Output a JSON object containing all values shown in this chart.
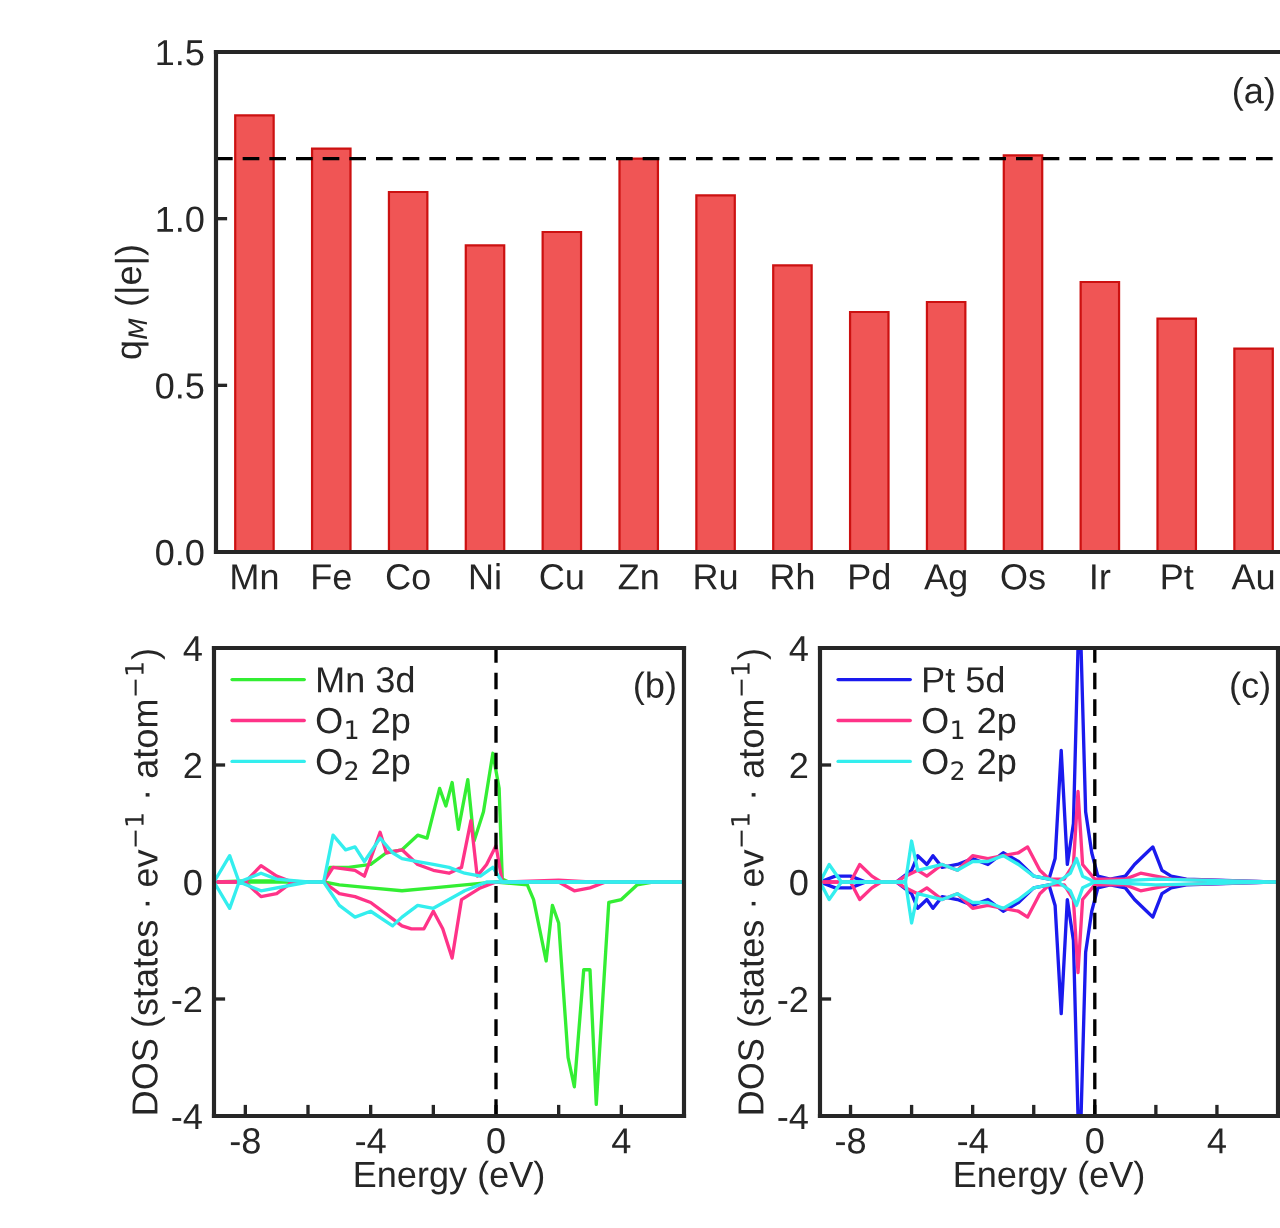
{
  "chart_data": [
    {
      "type": "bar",
      "categories": [
        "Mn",
        "Fe",
        "Co",
        "Ni",
        "Cu",
        "Zn",
        "Ru",
        "Rh",
        "Pd",
        "Ag",
        "Os",
        "Ir",
        "Pt",
        "Au"
      ],
      "values": [
        1.31,
        1.21,
        1.08,
        0.92,
        0.96,
        1.18,
        1.07,
        0.86,
        0.72,
        0.75,
        1.19,
        0.81,
        0.7,
        0.61
      ],
      "color": "#f05555",
      "ylabel": "q$_{M}$ (|e|)",
      "ylim": [
        0,
        1.5
      ],
      "yticks": [
        {
          "value": 0,
          "label": "0.0"
        },
        {
          "value": 0.5,
          "label": "0.5"
        },
        {
          "value": 1,
          "label": "1.0"
        },
        {
          "value": 1.5,
          "label": "1.5"
        }
      ],
      "ref_lines": [
        {
          "axis": "y",
          "value": 1.18,
          "line_style": "dashed",
          "color": "#000000"
        }
      ],
      "annotations": [
        "(a)"
      ]
    },
    {
      "type": "line",
      "xlabel": "Energy (eV)",
      "ylabel": "DOS (states · ev$^{−1}$ · atom$^{−1}$)",
      "xlim": [
        -9,
        6
      ],
      "ylim": [
        -4,
        4
      ],
      "xticks": [
        -8,
        {
          "value": -6,
          "label": null
        },
        -4,
        {
          "value": -2,
          "label": null
        },
        0,
        {
          "value": 2,
          "label": null
        },
        4
      ],
      "yticks": [
        -4,
        -2,
        0,
        2,
        4
      ],
      "legend": "top left",
      "line_style": "solid",
      "ref_lines": [
        {
          "axis": "x",
          "value": 0,
          "line_style": "dashed",
          "color": "#000000"
        }
      ],
      "annotations": [
        "(b)"
      ],
      "series": [
        {
          "name": "Mn 3d",
          "color": "#33ee33",
          "x": [
            -9,
            -8,
            -7,
            -6,
            -5.5,
            -5.3,
            -4.7,
            -4,
            -3.5,
            -3,
            -2.5,
            -2.2,
            -1.8,
            -1.6,
            -1.4,
            -1.2,
            -0.9,
            -0.7,
            -0.4,
            -0.1,
            0.1,
            0.2,
            0.4,
            2,
            4,
            6
          ],
          "values": [
            0,
            0.02,
            0.02,
            0,
            0,
            0.25,
            0.25,
            0.3,
            0.5,
            0.55,
            0.8,
            0.75,
            1.6,
            1.3,
            1.7,
            0.9,
            1.75,
            0.7,
            1.2,
            2.2,
            1.6,
            0.05,
            0,
            0,
            0,
            0
          ]
        },
        {
          "color": "#33ee33",
          "x": [
            -9,
            -5.5,
            -5,
            -4,
            -3,
            -2,
            -1,
            0,
            1,
            1.2,
            1.6,
            1.8,
            2.0,
            2.3,
            2.5,
            2.8,
            3.0,
            3.2,
            3.5,
            3.6,
            4.0,
            4.5,
            5,
            6
          ],
          "values": [
            0,
            0,
            -0.05,
            -0.1,
            -0.15,
            -0.1,
            -0.05,
            0,
            -0.05,
            -0.3,
            -1.35,
            -0.4,
            -0.7,
            -3.0,
            -3.5,
            -1.5,
            -1.5,
            -3.8,
            -1.2,
            -0.35,
            -0.3,
            -0.05,
            0,
            0
          ]
        },
        {
          "name": "O$_{1}$ 2p",
          "color": "#ff3388",
          "x": [
            -9,
            -8,
            -7.5,
            -7,
            -6.5,
            -5.5,
            -5.2,
            -4.5,
            -4.2,
            -3.7,
            -3.5,
            -3,
            -2.5,
            -2,
            -1.5,
            -1.1,
            -0.8,
            -0.6,
            -0.3,
            0,
            0.2,
            2,
            3,
            6
          ],
          "values": [
            0,
            0,
            0.28,
            0.1,
            0,
            0,
            0.25,
            0.2,
            0.1,
            0.85,
            0.5,
            0.55,
            0.3,
            0.2,
            0.15,
            0.25,
            1.05,
            0.1,
            0.3,
            0.62,
            0,
            0.03,
            0,
            0
          ]
        },
        {
          "color": "#ff3388",
          "x": [
            -9,
            -8,
            -7.5,
            -7,
            -6.5,
            -5.5,
            -5,
            -4.5,
            -4,
            -3.5,
            -3,
            -2.7,
            -2.3,
            -2,
            -1.7,
            -1.4,
            -1.1,
            -0.5,
            0,
            2,
            2.5,
            3,
            3.5,
            6
          ],
          "values": [
            0,
            0,
            -0.25,
            -0.2,
            0,
            0,
            -0.2,
            -0.25,
            -0.35,
            -0.55,
            -0.75,
            -0.8,
            -0.8,
            -0.5,
            -0.8,
            -1.3,
            -0.3,
            -0.1,
            0,
            0,
            -0.15,
            -0.1,
            0,
            0
          ]
        },
        {
          "name": "O$_{2}$ 2p",
          "color": "#33eeee",
          "x": [
            -9,
            -8.5,
            -8.2,
            -7.5,
            -7,
            -6,
            -5.5,
            -5.2,
            -4.8,
            -4.5,
            -4.2,
            -3.7,
            -3.3,
            -3,
            -2.5,
            -2,
            -1.5,
            -1,
            -0.5,
            -0.1,
            0.2,
            6
          ],
          "values": [
            0,
            0.45,
            0,
            0.15,
            0.05,
            0,
            0,
            0.8,
            0.55,
            0.6,
            0.35,
            0.75,
            0.5,
            0.4,
            0.35,
            0.3,
            0.25,
            0.15,
            0.1,
            0.25,
            0,
            0
          ]
        },
        {
          "color": "#33eeee",
          "x": [
            -9,
            -8.5,
            -8.2,
            -7.5,
            -6,
            -5.5,
            -5,
            -4.5,
            -4,
            -3.3,
            -3,
            -2.5,
            -2,
            -1.5,
            -1,
            -0.3,
            0.3,
            6
          ],
          "values": [
            0,
            -0.45,
            0,
            -0.15,
            0,
            0,
            -0.4,
            -0.6,
            -0.5,
            -0.75,
            -0.6,
            -0.4,
            -0.45,
            -0.3,
            -0.15,
            0,
            0,
            0
          ]
        }
      ]
    },
    {
      "type": "line",
      "xlabel": "Energy (eV)",
      "ylabel": "DOS (states · ev$^{−1}$ · atom$^{−1}$)",
      "xlim": [
        -9,
        6
      ],
      "ylim": [
        -4,
        4
      ],
      "xticks": [
        -8,
        {
          "value": -6,
          "label": null
        },
        -4,
        {
          "value": -2,
          "label": null
        },
        0,
        {
          "value": 2,
          "label": null
        },
        4
      ],
      "yticks": [
        -4,
        -2,
        0,
        2,
        4
      ],
      "legend": "top left",
      "line_style": "solid",
      "ref_lines": [
        {
          "axis": "x",
          "value": 0,
          "line_style": "dashed",
          "color": "#000000"
        }
      ],
      "annotations": [
        "(c)"
      ],
      "series": [
        {
          "name": "Pt 5d",
          "color": "#1a1aee",
          "x": [
            -9,
            -8.5,
            -8,
            -7.5,
            -6.5,
            -6,
            -5.8,
            -5.5,
            -5.3,
            -5,
            -4.5,
            -4,
            -3.5,
            -3,
            -2.5,
            -2,
            -1.5,
            -1.3,
            -1.1,
            -0.9,
            -0.7,
            -0.55,
            -0.45,
            -0.3,
            -0.1,
            0.1,
            0.5,
            1,
            1.3,
            1.7,
            1.9,
            2.2,
            2.5,
            3,
            4,
            6
          ],
          "values": [
            0,
            0.1,
            0.1,
            0,
            0,
            0.2,
            0.45,
            0.3,
            0.45,
            0.25,
            0.3,
            0.4,
            0.3,
            0.5,
            0.35,
            0.1,
            0.05,
            0.4,
            2.25,
            0.3,
            1.0,
            4,
            4,
            1.2,
            0.5,
            0.1,
            0.05,
            0.1,
            0.3,
            0.5,
            0.6,
            0.2,
            0.1,
            0.05,
            0.03,
            0
          ]
        },
        {
          "color": "#1a1aee",
          "x": [
            -9,
            -8.5,
            -8,
            -7.5,
            -6.5,
            -6,
            -5.8,
            -5.5,
            -5.3,
            -5,
            -4.5,
            -4,
            -3.5,
            -3,
            -2.5,
            -2,
            -1.5,
            -1.3,
            -1.1,
            -0.9,
            -0.7,
            -0.55,
            -0.45,
            -0.3,
            -0.1,
            0.1,
            0.5,
            1,
            1.3,
            1.7,
            1.9,
            2.2,
            2.5,
            3,
            4,
            6
          ],
          "values": [
            0,
            -0.1,
            -0.1,
            0,
            0,
            -0.2,
            -0.45,
            -0.3,
            -0.45,
            -0.25,
            -0.3,
            -0.4,
            -0.3,
            -0.5,
            -0.35,
            -0.1,
            -0.05,
            -0.4,
            -2.25,
            -0.3,
            -1.0,
            -4,
            -4,
            -1.2,
            -0.5,
            -0.1,
            -0.05,
            -0.1,
            -0.3,
            -0.5,
            -0.6,
            -0.2,
            -0.1,
            -0.05,
            -0.03,
            0
          ]
        },
        {
          "name": "O$_{1}$ 2p",
          "color": "#ff3388",
          "x": [
            -9,
            -8.5,
            -8,
            -7.7,
            -7.3,
            -7,
            -6.5,
            -6.2,
            -5.8,
            -5.5,
            -5,
            -4.5,
            -4,
            -3.5,
            -3,
            -2.5,
            -2.2,
            -1.8,
            -1.5,
            -1,
            -0.7,
            -0.55,
            -0.4,
            0,
            1,
            1.5,
            2,
            2.5,
            6
          ],
          "values": [
            0,
            0,
            0,
            0.3,
            0.1,
            0,
            0,
            0.1,
            0.2,
            0.1,
            0.3,
            0.2,
            0.45,
            0.4,
            0.45,
            0.5,
            0.6,
            0.2,
            0.05,
            0.05,
            0.3,
            1.55,
            0.3,
            0.05,
            0.05,
            0.15,
            0.1,
            0.05,
            0
          ]
        },
        {
          "color": "#ff3388",
          "x": [
            -9,
            -8.5,
            -8,
            -7.7,
            -7.3,
            -7,
            -6.5,
            -6.2,
            -5.8,
            -5.5,
            -5,
            -4.5,
            -4,
            -3.5,
            -3,
            -2.5,
            -2.2,
            -1.8,
            -1.5,
            -1,
            -0.7,
            -0.55,
            -0.4,
            0,
            1,
            1.5,
            2,
            2.5,
            6
          ],
          "values": [
            0,
            0,
            0,
            -0.3,
            -0.1,
            0,
            0,
            -0.1,
            -0.2,
            -0.1,
            -0.3,
            -0.2,
            -0.45,
            -0.4,
            -0.45,
            -0.5,
            -0.6,
            -0.2,
            -0.05,
            -0.05,
            -0.3,
            -1.55,
            -0.3,
            -0.05,
            -0.05,
            -0.15,
            -0.1,
            -0.05,
            0
          ]
        },
        {
          "name": "O$_{2}$ 2p",
          "color": "#33eeee",
          "x": [
            -9,
            -8.7,
            -8.3,
            -8,
            -7.5,
            -6.2,
            -6.0,
            -5.8,
            -5,
            -4.5,
            -4,
            -3.5,
            -3,
            -2.5,
            -2,
            -1.5,
            -1.2,
            -0.8,
            -0.6,
            -0.4,
            0,
            2,
            6
          ],
          "values": [
            0,
            0.3,
            0,
            0,
            0,
            0,
            0.7,
            0.2,
            0.3,
            0.2,
            0.35,
            0.35,
            0.45,
            0.3,
            0.1,
            0.05,
            0,
            0.15,
            0.4,
            0.1,
            0,
            0.05,
            0
          ]
        },
        {
          "color": "#33eeee",
          "x": [
            -9,
            -8.7,
            -8.3,
            -8,
            -7.5,
            -6.2,
            -6.0,
            -5.8,
            -5,
            -4.5,
            -4,
            -3.5,
            -3,
            -2.5,
            -2,
            -1.5,
            -1.2,
            -0.8,
            -0.6,
            -0.4,
            0,
            2,
            6
          ],
          "values": [
            0,
            -0.3,
            0,
            0,
            0,
            0,
            -0.7,
            -0.2,
            -0.3,
            -0.2,
            -0.35,
            -0.35,
            -0.45,
            -0.3,
            -0.1,
            -0.05,
            0,
            -0.15,
            -0.4,
            -0.1,
            0,
            -0.05,
            0
          ]
        }
      ]
    }
  ]
}
